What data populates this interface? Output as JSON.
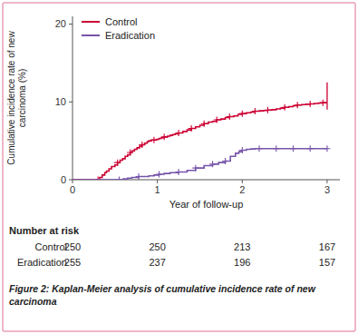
{
  "chart_data": {
    "type": "line",
    "title": "Figure 2: Kaplan-Meier analysis of cumulative incidence rate of new carcinoma",
    "xlabel": "Year of follow-up",
    "ylabel": "Cumulative incidence rate of new carcinoma (%)",
    "xlim": [
      0,
      3.15
    ],
    "ylim": [
      0,
      21
    ],
    "xticks": [
      0,
      1,
      2,
      3
    ],
    "yticks": [
      0,
      10,
      20
    ],
    "grid": false,
    "legend": "upper left",
    "series": [
      {
        "name": "Control",
        "color": "#cc0033",
        "line_style": "step",
        "marker": "plus",
        "x": [
          0,
          0.3,
          0.32,
          0.35,
          0.38,
          0.4,
          0.43,
          0.46,
          0.5,
          0.53,
          0.56,
          0.59,
          0.62,
          0.65,
          0.68,
          0.7,
          0.73,
          0.76,
          0.79,
          0.82,
          0.85,
          0.88,
          0.9,
          0.93,
          0.96,
          0.99,
          1.02,
          1.05,
          1.08,
          1.12,
          1.15,
          1.18,
          1.21,
          1.25,
          1.3,
          1.35,
          1.4,
          1.45,
          1.5,
          1.55,
          1.6,
          1.65,
          1.7,
          1.75,
          1.8,
          1.85,
          1.9,
          1.95,
          2.0,
          2.05,
          2.1,
          2.15,
          2.2,
          2.25,
          2.3,
          2.35,
          2.4,
          2.45,
          2.5,
          2.55,
          2.6,
          2.65,
          2.7,
          2.75,
          2.8,
          2.85,
          2.9,
          2.95,
          3.0
        ],
        "values": [
          0,
          0,
          0.3,
          0.6,
          0.9,
          1.1,
          1.4,
          1.7,
          1.9,
          2.2,
          2.5,
          2.7,
          3.0,
          3.2,
          3.5,
          3.7,
          3.9,
          4.1,
          4.3,
          4.5,
          4.7,
          4.9,
          5.0,
          5.1,
          5.1,
          5.2,
          5.3,
          5.4,
          5.5,
          5.6,
          5.7,
          5.8,
          5.9,
          6.0,
          6.2,
          6.4,
          6.6,
          6.8,
          7.0,
          7.2,
          7.4,
          7.5,
          7.7,
          7.8,
          8.0,
          8.1,
          8.2,
          8.4,
          8.5,
          8.6,
          8.7,
          8.8,
          8.85,
          8.9,
          8.95,
          9.0,
          9.1,
          9.2,
          9.3,
          9.4,
          9.5,
          9.6,
          9.65,
          9.7,
          9.75,
          9.8,
          9.85,
          9.9,
          9.9
        ],
        "censored_x": [
          0.3,
          0.53,
          0.68,
          0.82,
          0.96,
          1.08,
          1.25,
          1.4,
          1.55,
          1.7,
          1.85,
          2.0,
          2.15,
          2.3,
          2.5,
          2.65,
          2.8,
          2.95
        ],
        "censored_y": [
          0,
          2.2,
          3.5,
          4.5,
          5.1,
          5.5,
          6.0,
          6.6,
          7.2,
          7.7,
          8.1,
          8.5,
          8.8,
          8.95,
          9.3,
          9.6,
          9.75,
          9.9
        ],
        "ci_x": 3.0,
        "ci_lower": 9.0,
        "ci_upper": 12.5
      },
      {
        "name": "Eradication",
        "color": "#7755aa",
        "line_style": "step",
        "marker": "plus",
        "x": [
          0,
          0.55,
          0.6,
          0.65,
          0.7,
          0.78,
          0.9,
          0.96,
          1.02,
          1.08,
          1.15,
          1.25,
          1.35,
          1.45,
          1.55,
          1.65,
          1.72,
          1.8,
          1.86,
          1.92,
          1.96,
          2.0,
          2.05,
          2.1,
          2.15,
          2.2,
          2.3,
          2.4,
          2.55,
          2.65,
          2.75,
          2.85,
          2.95,
          3.0
        ],
        "values": [
          0,
          0,
          0.1,
          0.2,
          0.3,
          0.4,
          0.5,
          0.6,
          0.7,
          0.8,
          0.9,
          1.0,
          1.2,
          1.5,
          1.8,
          2.0,
          2.2,
          2.4,
          3.0,
          3.4,
          3.6,
          3.8,
          3.9,
          3.95,
          4.0,
          4.0,
          4.0,
          4.0,
          4.0,
          4.0,
          4.0,
          4.0,
          4.0,
          4.0
        ],
        "censored_x": [
          0.55,
          0.78,
          1.02,
          1.25,
          1.45,
          1.65,
          1.8,
          2.0,
          2.2,
          2.4,
          2.6,
          2.8,
          3.0
        ],
        "censored_y": [
          0,
          0.4,
          0.7,
          1.0,
          1.5,
          2.0,
          2.4,
          3.8,
          4.0,
          4.0,
          4.0,
          4.0,
          4.0
        ]
      }
    ],
    "number_at_risk": {
      "label": "Number at risk",
      "x": [
        0,
        1,
        2,
        3
      ],
      "rows": [
        {
          "name": "Control",
          "values": [
            250,
            250,
            213,
            167
          ]
        },
        {
          "name": "Eradication",
          "values": [
            255,
            237,
            196,
            157
          ]
        }
      ]
    }
  }
}
